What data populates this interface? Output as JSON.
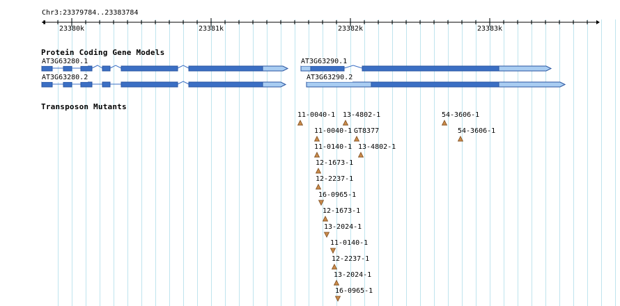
{
  "location": {
    "label": "Chr3:23379784..23383784"
  },
  "ruler": {
    "ticks": [
      {
        "label": "23380k",
        "pos": 23380000
      },
      {
        "label": "23381k",
        "pos": 23381000
      },
      {
        "label": "23382k",
        "pos": 23382000
      },
      {
        "label": "23383k",
        "pos": 23383000
      }
    ]
  },
  "tracks": {
    "gene_models": {
      "title": "Protein Coding Gene Models",
      "genes": [
        {
          "name": "AT3G63280.1",
          "strand": "+"
        },
        {
          "name": "AT3G63280.2",
          "strand": "+"
        },
        {
          "name": "AT3G63290.1",
          "strand": "+"
        },
        {
          "name": "AT3G63290.2",
          "strand": "+"
        }
      ]
    },
    "transposon_mutants": {
      "title": "Transposon Mutants",
      "items": [
        {
          "label": "11-0040-1",
          "orientation": "up"
        },
        {
          "label": "13-4802-1",
          "orientation": "up"
        },
        {
          "label": "54-3606-1",
          "orientation": "up"
        },
        {
          "label": "11-0040-1",
          "orientation": "up"
        },
        {
          "label": "GT8377",
          "orientation": "up"
        },
        {
          "label": "54-3606-1",
          "orientation": "up"
        },
        {
          "label": "11-0140-1",
          "orientation": "up"
        },
        {
          "label": "13-4802-1",
          "orientation": "up"
        },
        {
          "label": "12-1673-1",
          "orientation": "up"
        },
        {
          "label": "12-2237-1",
          "orientation": "up"
        },
        {
          "label": "16-0965-1",
          "orientation": "down"
        },
        {
          "label": "12-1673-1",
          "orientation": "up"
        },
        {
          "label": "13-2024-1",
          "orientation": "down"
        },
        {
          "label": "11-0140-1",
          "orientation": "down"
        },
        {
          "label": "12-2237-1",
          "orientation": "up"
        },
        {
          "label": "13-2024-1",
          "orientation": "up"
        },
        {
          "label": "16-0965-1",
          "orientation": "down"
        }
      ]
    }
  },
  "colors": {
    "grid": "#bfe4ee",
    "cds": "#3b6fc4",
    "utr": "#a9cdf2",
    "mutant_marker": "#c98a4a"
  }
}
